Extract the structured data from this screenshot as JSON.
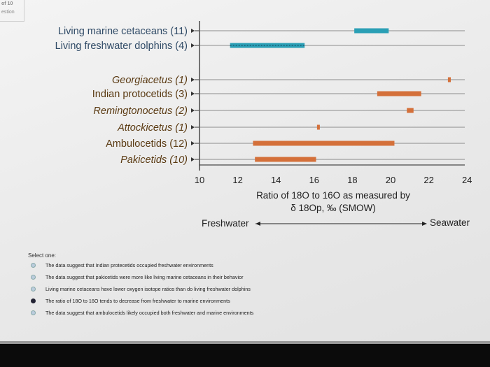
{
  "header": {
    "question_fragment": "of 10",
    "section_fragment": "estion"
  },
  "chart_data": {
    "type": "range-bar",
    "xlabel_line1": "Ratio of 18O to 16O  as measured by",
    "xlabel_line2": "δ 18Op, ‰ (SMOW)",
    "x_ticks": [
      10,
      12,
      14,
      16,
      18,
      20,
      22,
      24
    ],
    "xlim": [
      10,
      24
    ],
    "categories": [
      {
        "label": "Living marine cetaceans (11)",
        "style": "upright-blue",
        "range": [
          18.1,
          19.9
        ],
        "color": "#2a9fb5",
        "kind": "bar"
      },
      {
        "label": "Living freshwater dolphins (4)",
        "style": "upright-blue",
        "range": [
          11.6,
          15.5
        ],
        "color": "#2a9fb5",
        "kind": "dashed"
      },
      {
        "label": "Georgiacetus (1)",
        "style": "italic",
        "range": [
          23.0,
          23.15
        ],
        "color": "#d4703a",
        "kind": "bar"
      },
      {
        "label": "Indian protocetids (3)",
        "style": "upright",
        "range": [
          19.3,
          21.6
        ],
        "color": "#d4703a",
        "kind": "bar"
      },
      {
        "label": "Remingtonocetus (2)",
        "style": "italic",
        "range": [
          20.85,
          21.2
        ],
        "color": "#d4703a",
        "kind": "bar"
      },
      {
        "label": "Attockicetus (1)",
        "style": "italic",
        "range": [
          16.15,
          16.25
        ],
        "color": "#d4703a",
        "kind": "bar"
      },
      {
        "label": "Ambulocetids (12)",
        "style": "upright",
        "range": [
          12.8,
          20.2
        ],
        "color": "#d4703a",
        "kind": "bar"
      },
      {
        "label": "Pakicetids (10)",
        "style": "italic",
        "range": [
          12.9,
          16.1
        ],
        "color": "#d4703a",
        "kind": "bar"
      }
    ],
    "arrow": {
      "left_label": "Freshwater",
      "right_label": "Seawater"
    }
  },
  "question": {
    "prompt": "Select one:",
    "options": [
      {
        "text": "The data suggest that Indian protecetids occupied freshwater environments",
        "selected": false
      },
      {
        "text": "The data suggest that pakicetids were more like living marine cetaceans in their behavior",
        "selected": false
      },
      {
        "text": "Living marine cetaceans have lower oxygen isotope ratios than do living freshwater dolphins",
        "selected": false
      },
      {
        "text": "The ratio of 18O to 16O tends to decrease from freshwater to marine environments",
        "selected": true
      },
      {
        "text": "The data suggest that ambulocetids likely occupied both freshwater and marine environments",
        "selected": false
      }
    ]
  }
}
